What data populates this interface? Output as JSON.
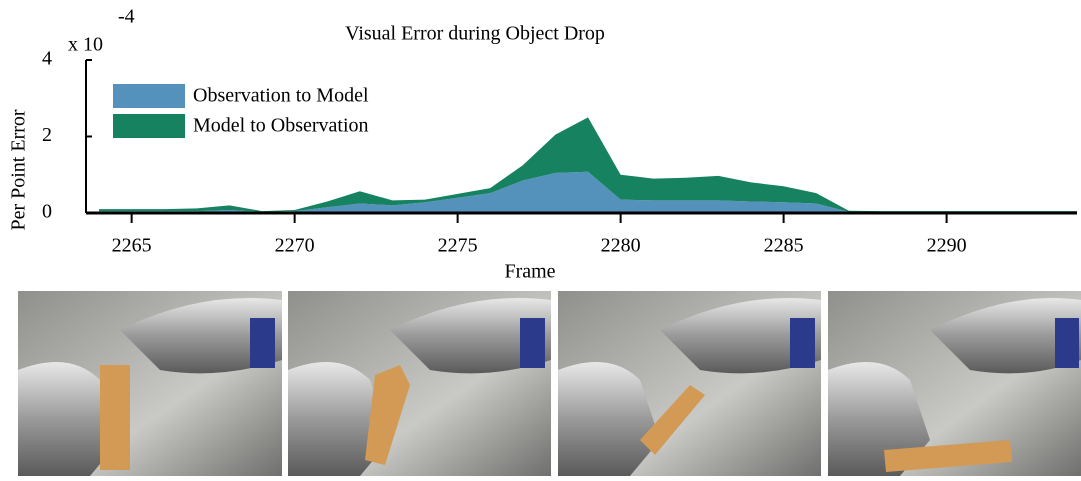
{
  "chart_data": {
    "type": "stacked_area",
    "title": "Visual Error during Object Drop",
    "xlabel": "Frame",
    "ylabel": "Per Point Error",
    "y_multiplier": "x 10",
    "y_exponent": "-4",
    "x": [
      2264,
      2265,
      2266,
      2267,
      2268,
      2269,
      2270,
      2271,
      2272,
      2273,
      2274,
      2275,
      2276,
      2277,
      2278,
      2279,
      2280,
      2281,
      2282,
      2283,
      2284,
      2285,
      2286,
      2287,
      2288,
      2289,
      2290,
      2291,
      2292,
      2293,
      2294
    ],
    "series": [
      {
        "name": "Observation to Model",
        "color": "#5592bb",
        "values": [
          0.05,
          0.05,
          0.05,
          0.05,
          0.08,
          0.03,
          0.05,
          0.15,
          0.25,
          0.2,
          0.28,
          0.4,
          0.52,
          0.85,
          1.05,
          1.08,
          0.35,
          0.33,
          0.33,
          0.33,
          0.3,
          0.28,
          0.25,
          0.03,
          0.03,
          0.03,
          0.03,
          0.03,
          0.03,
          0.03,
          0.03
        ]
      },
      {
        "name": "Model to Observation",
        "color": "#178260",
        "values": [
          0.05,
          0.05,
          0.05,
          0.07,
          0.12,
          0.02,
          0.03,
          0.15,
          0.32,
          0.13,
          0.07,
          0.1,
          0.13,
          0.4,
          1.0,
          1.42,
          0.65,
          0.57,
          0.59,
          0.64,
          0.5,
          0.42,
          0.27,
          0.03,
          0.02,
          0.02,
          0.02,
          0.02,
          0.02,
          0.02,
          0.02
        ]
      }
    ],
    "xlim": [
      2263.6,
      2294
    ],
    "ylim": [
      0,
      4
    ],
    "xticks": [
      2265,
      2270,
      2275,
      2280,
      2285,
      2290
    ],
    "yticks": [
      0,
      2,
      4
    ],
    "legend": "upper left"
  }
}
